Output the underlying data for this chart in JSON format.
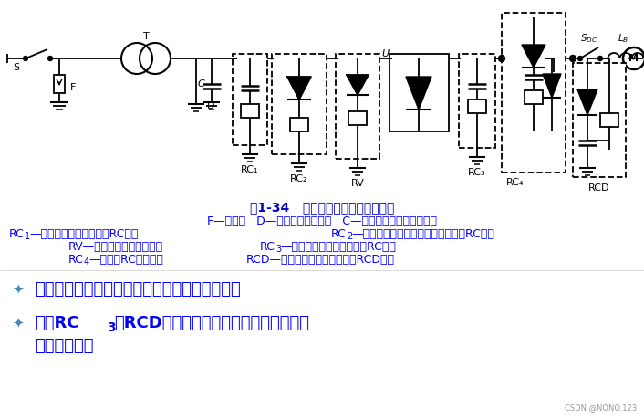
{
  "title_line": "图1-34   过电压抑制措施及配置位置",
  "caption_line1": "F—避雷器   D—变压器静电屏蔽层   C—静电感应过电压抑制电容",
  "cap2_a": "RC",
  "cap2_a_sub": "1",
  "cap2_a_rest": "—阀侧浪涌过电压抑制用RC电路",
  "cap2_b": "RC",
  "cap2_b_sub": "2",
  "cap2_b_rest": "—阀侧浪涌过电压抑制用反向阻断式RC电路",
  "cap3_a": "RV—压敏电阻过电压抑制器",
  "cap3_b": "RC",
  "cap3_b_sub": "3",
  "cap3_b_rest": "—阀器件换相过电压抑制用RC电路",
  "cap4_a": "RC",
  "cap4_a_sub": "4",
  "cap4_a_rest": "—直流侧RC抑制电路",
  "cap4_b": "RCD—阀器件关断过电压抑制用RCD电路",
  "bullet1": "电力电子装置可视具体情况只采用其中的几种。",
  "bullet2a": "其中RC",
  "bullet2a_sub": "3",
  "bullet2a_rest": "和RCD为抑制内因过电压的措施，属于缓",
  "bullet2b": "冲电路范畴。",
  "watermark": "CSDN @NONO.123",
  "blue": "#0000FF",
  "dark_blue": "#0000CC",
  "bullet_blue": "#4488BB",
  "bg": "#FFFFFF",
  "black": "#000000",
  "gray": "#999999",
  "title_fs": 10,
  "cap1_fs": 9,
  "cap2_fs": 9,
  "bullet_fs": 13
}
